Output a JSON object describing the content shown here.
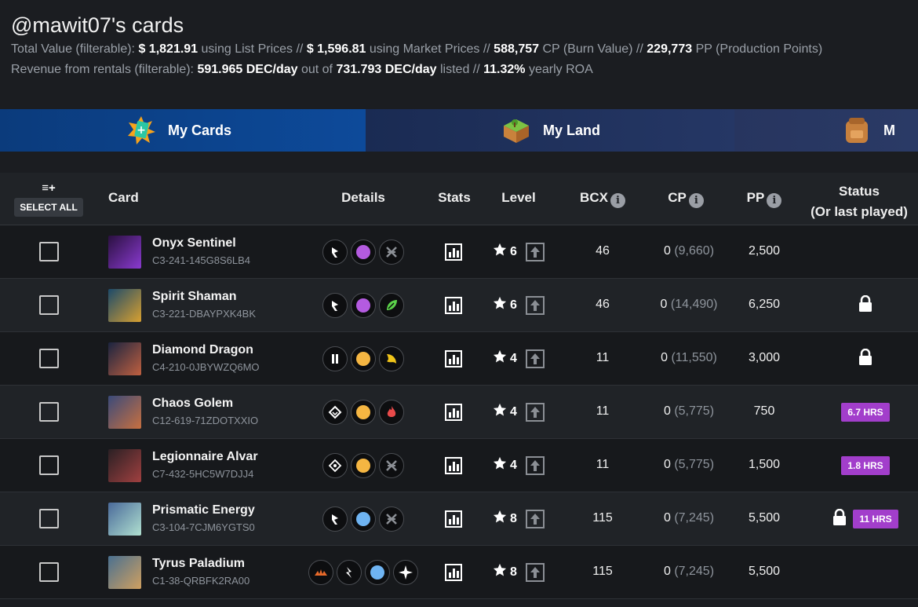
{
  "header": {
    "title": "@mawit07's cards",
    "line1": {
      "p1": "Total Value (filterable):",
      "list_value": "$ 1,821.91",
      "p2": "using List Prices //",
      "market_value": "$ 1,596.81",
      "p3": "using Market Prices //",
      "cp_value": "588,757",
      "p4": "CP (Burn Value) //",
      "pp_value": "229,773",
      "p5": "PP (Production Points)"
    },
    "line2": {
      "p1": "Revenue from rentals (filterable):",
      "revenue": "591.965 DEC/day",
      "p2": "out of",
      "listed": "731.793 DEC/day",
      "p3": "listed //",
      "roa": "11.32%",
      "p4": "yearly ROA"
    }
  },
  "tabs": [
    {
      "label": "My Cards"
    },
    {
      "label": "My Land"
    },
    {
      "label": "M"
    }
  ],
  "table": {
    "select_all_icon": "≡+",
    "select_all_label": "SELECT ALL",
    "headers": {
      "card": "Card",
      "details": "Details",
      "stats": "Stats",
      "level": "Level",
      "bcx": "BCX",
      "cp": "CP",
      "pp": "PP",
      "status": "Status",
      "status_sub": "(Or last played)"
    },
    "rows": [
      {
        "name": "Onyx Sentinel",
        "id": "C3-241-145G8S6LB4",
        "level": "6",
        "bcx": "46",
        "cp": "0",
        "cp_paren": "(9,660)",
        "pp": "2,500",
        "status": "",
        "locked": false
      },
      {
        "name": "Spirit Shaman",
        "id": "C3-221-DBAYPXK4BK",
        "level": "6",
        "bcx": "46",
        "cp": "0",
        "cp_paren": "(14,490)",
        "pp": "6,250",
        "status": "",
        "locked": true
      },
      {
        "name": "Diamond Dragon",
        "id": "C4-210-0JBYWZQ6MO",
        "level": "4",
        "bcx": "11",
        "cp": "0",
        "cp_paren": "(11,550)",
        "pp": "3,000",
        "status": "",
        "locked": true
      },
      {
        "name": "Chaos Golem",
        "id": "C12-619-71ZDOTXXIO",
        "level": "4",
        "bcx": "11",
        "cp": "0",
        "cp_paren": "(5,775)",
        "pp": "750",
        "status": "6.7 HRS",
        "locked": false
      },
      {
        "name": "Legionnaire Alvar",
        "id": "C7-432-5HC5W7DJJ4",
        "level": "4",
        "bcx": "11",
        "cp": "0",
        "cp_paren": "(5,775)",
        "pp": "1,500",
        "status": "1.8 HRS",
        "locked": false
      },
      {
        "name": "Prismatic Energy",
        "id": "C3-104-7CJM6YGTS0",
        "level": "8",
        "bcx": "115",
        "cp": "0",
        "cp_paren": "(7,245)",
        "pp": "5,500",
        "status": "11 HRS",
        "locked": true
      },
      {
        "name": "Tyrus Paladium",
        "id": "C1-38-QRBFK2RA00",
        "level": "8",
        "bcx": "115",
        "cp": "0",
        "cp_paren": "(7,245)",
        "pp": "5,500",
        "status": "",
        "locked": false
      }
    ]
  },
  "colors": {
    "accent_blue": "#0d4a9a",
    "badge_purple": "#a23ecb",
    "rarity_epic": "#b45be0",
    "rarity_rare": "#f5b642",
    "rarity_common": "#6fb4f2"
  }
}
